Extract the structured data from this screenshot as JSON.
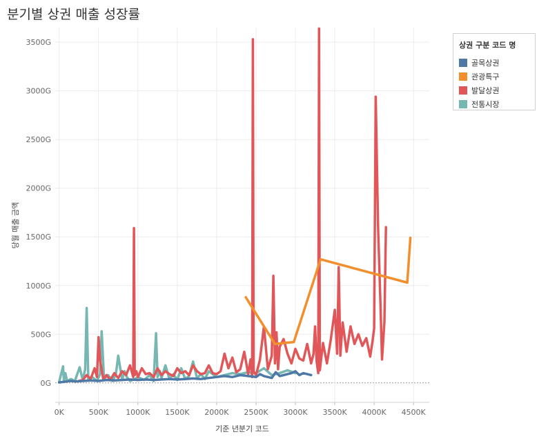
{
  "title": "분기별 상권 매출 성장률",
  "legend": {
    "title": "상권 구분 코드 명"
  },
  "colors": {
    "골목상권": "#4e79a7",
    "관광특구": "#f28e2b",
    "발달상권": "#e15759",
    "전통시장": "#76b7b2"
  },
  "chart_data": {
    "type": "line",
    "title": "분기별 상권 매출 성장률",
    "xlabel": "기준 년분기 코드",
    "ylabel": "당월 매출 금액",
    "xlim": [
      -50000,
      4700000
    ],
    "ylim": [
      -200,
      3650
    ],
    "x_ticks": [
      0,
      500000,
      1000000,
      1500000,
      2000000,
      2500000,
      3000000,
      3500000,
      4000000,
      4500000
    ],
    "x_tick_labels": [
      "0K",
      "500K",
      "1000K",
      "1500K",
      "2000K",
      "2500K",
      "3000K",
      "3500K",
      "4000K",
      "4500K"
    ],
    "y_ticks": [
      0,
      500,
      1000,
      1500,
      2000,
      2500,
      3000,
      3500
    ],
    "y_tick_labels": [
      "0G",
      "500G",
      "1000G",
      "1500G",
      "2000G",
      "2500G",
      "3000G",
      "3500G"
    ],
    "grid": true,
    "legend_position": "right",
    "series": [
      {
        "name": "전통시장",
        "x": [
          0,
          50000,
          60000,
          80000,
          100000,
          150000,
          200000,
          260000,
          300000,
          330000,
          350000,
          370000,
          420000,
          480000,
          520000,
          540000,
          570000,
          620000,
          680000,
          720000,
          750000,
          800000,
          830000,
          860000,
          900000,
          960000,
          1000000,
          1080000,
          1150000,
          1200000,
          1230000,
          1250000,
          1280000,
          1300000,
          1350000,
          1400000,
          1450000,
          1500000,
          1550000,
          1600000,
          1650000,
          1700000,
          1750000,
          1800000,
          1850000,
          1900000,
          2000000,
          2100000,
          2200000,
          2300000,
          2400000,
          2500000,
          2600000,
          2700000,
          2800000,
          2900000,
          3000000
        ],
        "values": [
          10,
          170,
          20,
          100,
          20,
          40,
          20,
          160,
          30,
          140,
          770,
          40,
          60,
          20,
          90,
          530,
          40,
          80,
          20,
          90,
          280,
          30,
          120,
          60,
          20,
          40,
          60,
          30,
          80,
          20,
          510,
          60,
          120,
          50,
          180,
          40,
          90,
          30,
          150,
          40,
          70,
          220,
          50,
          90,
          40,
          120,
          60,
          80,
          100,
          90,
          110,
          100,
          150,
          80,
          100,
          130,
          100
        ]
      },
      {
        "name": "발달상권",
        "x": [
          250000,
          300000,
          350000,
          400000,
          450000,
          480000,
          500000,
          520000,
          560000,
          600000,
          650000,
          700000,
          750000,
          800000,
          850000,
          900000,
          940000,
          950000,
          960000,
          980000,
          1000000,
          1050000,
          1100000,
          1150000,
          1200000,
          1250000,
          1300000,
          1350000,
          1400000,
          1450000,
          1500000,
          1550000,
          1600000,
          1650000,
          1700000,
          1750000,
          1800000,
          1850000,
          1900000,
          1950000,
          2000000,
          2050000,
          2100000,
          2150000,
          2200000,
          2250000,
          2300000,
          2350000,
          2400000,
          2430000,
          2450000,
          2460000,
          2470000,
          2500000,
          2550000,
          2600000,
          2650000,
          2700000,
          2720000,
          2740000,
          2760000,
          2780000,
          2800000,
          2850000,
          2900000,
          2950000,
          3000000,
          3050000,
          3100000,
          3150000,
          3200000,
          3230000,
          3250000,
          3270000,
          3290000,
          3300000,
          3310000,
          3350000,
          3400000,
          3450000,
          3500000,
          3530000,
          3550000,
          3570000,
          3600000,
          3650000,
          3700000,
          3750000,
          3800000,
          3850000,
          3900000,
          3950000,
          3980000,
          4000000,
          4020000,
          4050000,
          4080000,
          4100000,
          4130000,
          4150000
        ],
        "values": [
          20,
          30,
          80,
          40,
          150,
          60,
          470,
          230,
          40,
          80,
          30,
          100,
          50,
          120,
          80,
          180,
          60,
          1590,
          80,
          120,
          60,
          150,
          90,
          100,
          60,
          150,
          80,
          120,
          90,
          70,
          150,
          100,
          120,
          80,
          180,
          120,
          90,
          100,
          180,
          100,
          90,
          120,
          300,
          150,
          260,
          110,
          140,
          320,
          90,
          240,
          60,
          3530,
          120,
          80,
          240,
          580,
          140,
          280,
          1100,
          200,
          520,
          140,
          370,
          450,
          300,
          200,
          350,
          250,
          230,
          400,
          200,
          300,
          580,
          220,
          100,
          3640,
          130,
          410,
          200,
          450,
          750,
          300,
          1190,
          280,
          620,
          320,
          580,
          400,
          500,
          380,
          460,
          270,
          430,
          560,
          2940,
          1600,
          800,
          240,
          630,
          1600
        ]
      },
      {
        "name": "골목상권",
        "x": [
          0,
          50000,
          100000,
          150000,
          200000,
          300000,
          400000,
          500000,
          600000,
          700000,
          800000,
          900000,
          1000000,
          1100000,
          1200000,
          1300000,
          1400000,
          1500000,
          1600000,
          1700000,
          1800000,
          1900000,
          2000000,
          2100000,
          2200000,
          2300000,
          2400000,
          2500000,
          2550000,
          2600000,
          2650000,
          2700000,
          2750000,
          2800000,
          2850000,
          2900000,
          2950000,
          3000000,
          3050000,
          3100000,
          3150000,
          3200000
        ],
        "values": [
          5,
          10,
          15,
          20,
          15,
          20,
          25,
          20,
          30,
          25,
          30,
          35,
          30,
          35,
          30,
          35,
          40,
          35,
          40,
          45,
          40,
          50,
          60,
          70,
          60,
          80,
          70,
          60,
          90,
          70,
          60,
          50,
          110,
          70,
          80,
          90,
          100,
          120,
          80,
          100,
          90,
          80
        ]
      },
      {
        "name": "관광특구",
        "x": [
          2370000,
          2740000,
          2980000,
          3320000,
          4420000,
          4460000
        ],
        "values": [
          880,
          400,
          420,
          1270,
          1030,
          1490
        ]
      }
    ]
  }
}
